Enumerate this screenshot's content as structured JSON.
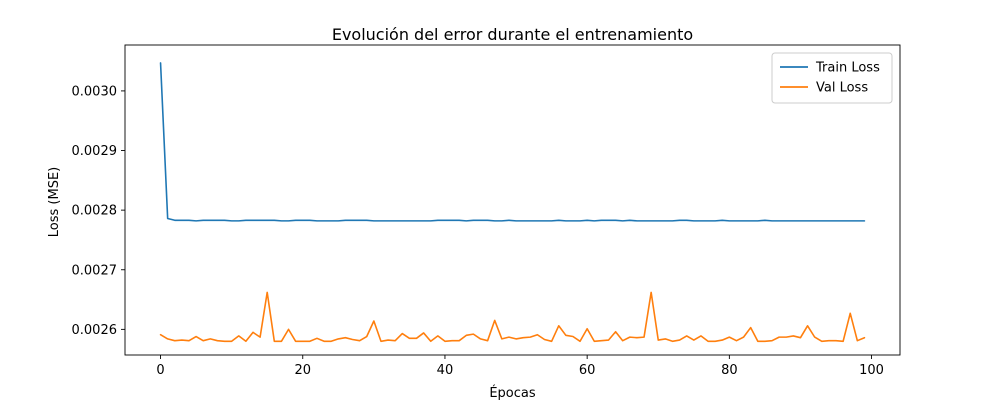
{
  "chart_data": {
    "type": "line",
    "title": "Evolución del error durante el entrenamiento",
    "xlabel": "Épocas",
    "ylabel": "Loss (MSE)",
    "xlim": [
      -5,
      104
    ],
    "ylim": [
      0.002557,
      0.003077
    ],
    "xticks": [
      0,
      20,
      40,
      60,
      80,
      100
    ],
    "xtick_labels": [
      "0",
      "20",
      "40",
      "60",
      "80",
      "100"
    ],
    "yticks": [
      0.0026,
      0.0027,
      0.0028,
      0.0029,
      0.003
    ],
    "ytick_labels": [
      "0.0026",
      "0.0027",
      "0.0028",
      "0.0029",
      "0.0030"
    ],
    "grid": false,
    "legend_position": "top-right",
    "x": [
      0,
      1,
      2,
      3,
      4,
      5,
      6,
      7,
      8,
      9,
      10,
      11,
      12,
      13,
      14,
      15,
      16,
      17,
      18,
      19,
      20,
      21,
      22,
      23,
      24,
      25,
      26,
      27,
      28,
      29,
      30,
      31,
      32,
      33,
      34,
      35,
      36,
      37,
      38,
      39,
      40,
      41,
      42,
      43,
      44,
      45,
      46,
      47,
      48,
      49,
      50,
      51,
      52,
      53,
      54,
      55,
      56,
      57,
      58,
      59,
      60,
      61,
      62,
      63,
      64,
      65,
      66,
      67,
      68,
      69,
      70,
      71,
      72,
      73,
      74,
      75,
      76,
      77,
      78,
      79,
      80,
      81,
      82,
      83,
      84,
      85,
      86,
      87,
      88,
      89,
      90,
      91,
      92,
      93,
      94,
      95,
      96,
      97,
      98,
      99
    ],
    "series": [
      {
        "name": "Train Loss",
        "color": "#1f77b4",
        "values": [
          0.003047,
          0.002786,
          0.002783,
          0.002783,
          0.002783,
          0.002782,
          0.002783,
          0.002783,
          0.002783,
          0.002783,
          0.002782,
          0.002782,
          0.002783,
          0.002783,
          0.002783,
          0.002783,
          0.002783,
          0.002782,
          0.002782,
          0.002783,
          0.002783,
          0.002783,
          0.002782,
          0.002782,
          0.002782,
          0.002782,
          0.002783,
          0.002783,
          0.002783,
          0.002783,
          0.002782,
          0.002782,
          0.002782,
          0.002782,
          0.002782,
          0.002782,
          0.002782,
          0.002782,
          0.002782,
          0.002783,
          0.002783,
          0.002783,
          0.002783,
          0.002782,
          0.002783,
          0.002783,
          0.002783,
          0.002782,
          0.002782,
          0.002783,
          0.002782,
          0.002782,
          0.002782,
          0.002782,
          0.002782,
          0.002782,
          0.002783,
          0.002782,
          0.002782,
          0.002782,
          0.002783,
          0.002782,
          0.002783,
          0.002783,
          0.002783,
          0.002782,
          0.002783,
          0.002782,
          0.002782,
          0.002782,
          0.002782,
          0.002782,
          0.002782,
          0.002783,
          0.002783,
          0.002782,
          0.002782,
          0.002782,
          0.002782,
          0.002783,
          0.002782,
          0.002782,
          0.002782,
          0.002782,
          0.002782,
          0.002783,
          0.002782,
          0.002782,
          0.002782,
          0.002782,
          0.002782,
          0.002782,
          0.002782,
          0.002782,
          0.002782,
          0.002782,
          0.002782,
          0.002782,
          0.002782,
          0.002782
        ]
      },
      {
        "name": "Val Loss",
        "color": "#ff7f0e",
        "values": [
          0.002591,
          0.002584,
          0.002581,
          0.002582,
          0.002581,
          0.002588,
          0.002581,
          0.002584,
          0.002581,
          0.00258,
          0.00258,
          0.002589,
          0.00258,
          0.002595,
          0.002587,
          0.002662,
          0.00258,
          0.00258,
          0.0026,
          0.00258,
          0.00258,
          0.00258,
          0.002585,
          0.00258,
          0.00258,
          0.002584,
          0.002586,
          0.002583,
          0.002581,
          0.002588,
          0.002614,
          0.00258,
          0.002582,
          0.002581,
          0.002593,
          0.002585,
          0.002585,
          0.002594,
          0.00258,
          0.002589,
          0.00258,
          0.002581,
          0.002581,
          0.00259,
          0.002592,
          0.002584,
          0.002581,
          0.002615,
          0.002584,
          0.002587,
          0.002584,
          0.002586,
          0.002587,
          0.002591,
          0.002583,
          0.00258,
          0.002606,
          0.00259,
          0.002588,
          0.00258,
          0.002601,
          0.00258,
          0.002581,
          0.002582,
          0.002596,
          0.002581,
          0.002587,
          0.002586,
          0.002587,
          0.002662,
          0.002582,
          0.002584,
          0.00258,
          0.002582,
          0.002589,
          0.002582,
          0.002589,
          0.00258,
          0.00258,
          0.002582,
          0.002587,
          0.002581,
          0.002587,
          0.002603,
          0.00258,
          0.00258,
          0.002581,
          0.002587,
          0.002587,
          0.002589,
          0.002586,
          0.002606,
          0.002587,
          0.00258,
          0.002581,
          0.002581,
          0.00258,
          0.002627,
          0.002581,
          0.002586
        ]
      }
    ]
  }
}
